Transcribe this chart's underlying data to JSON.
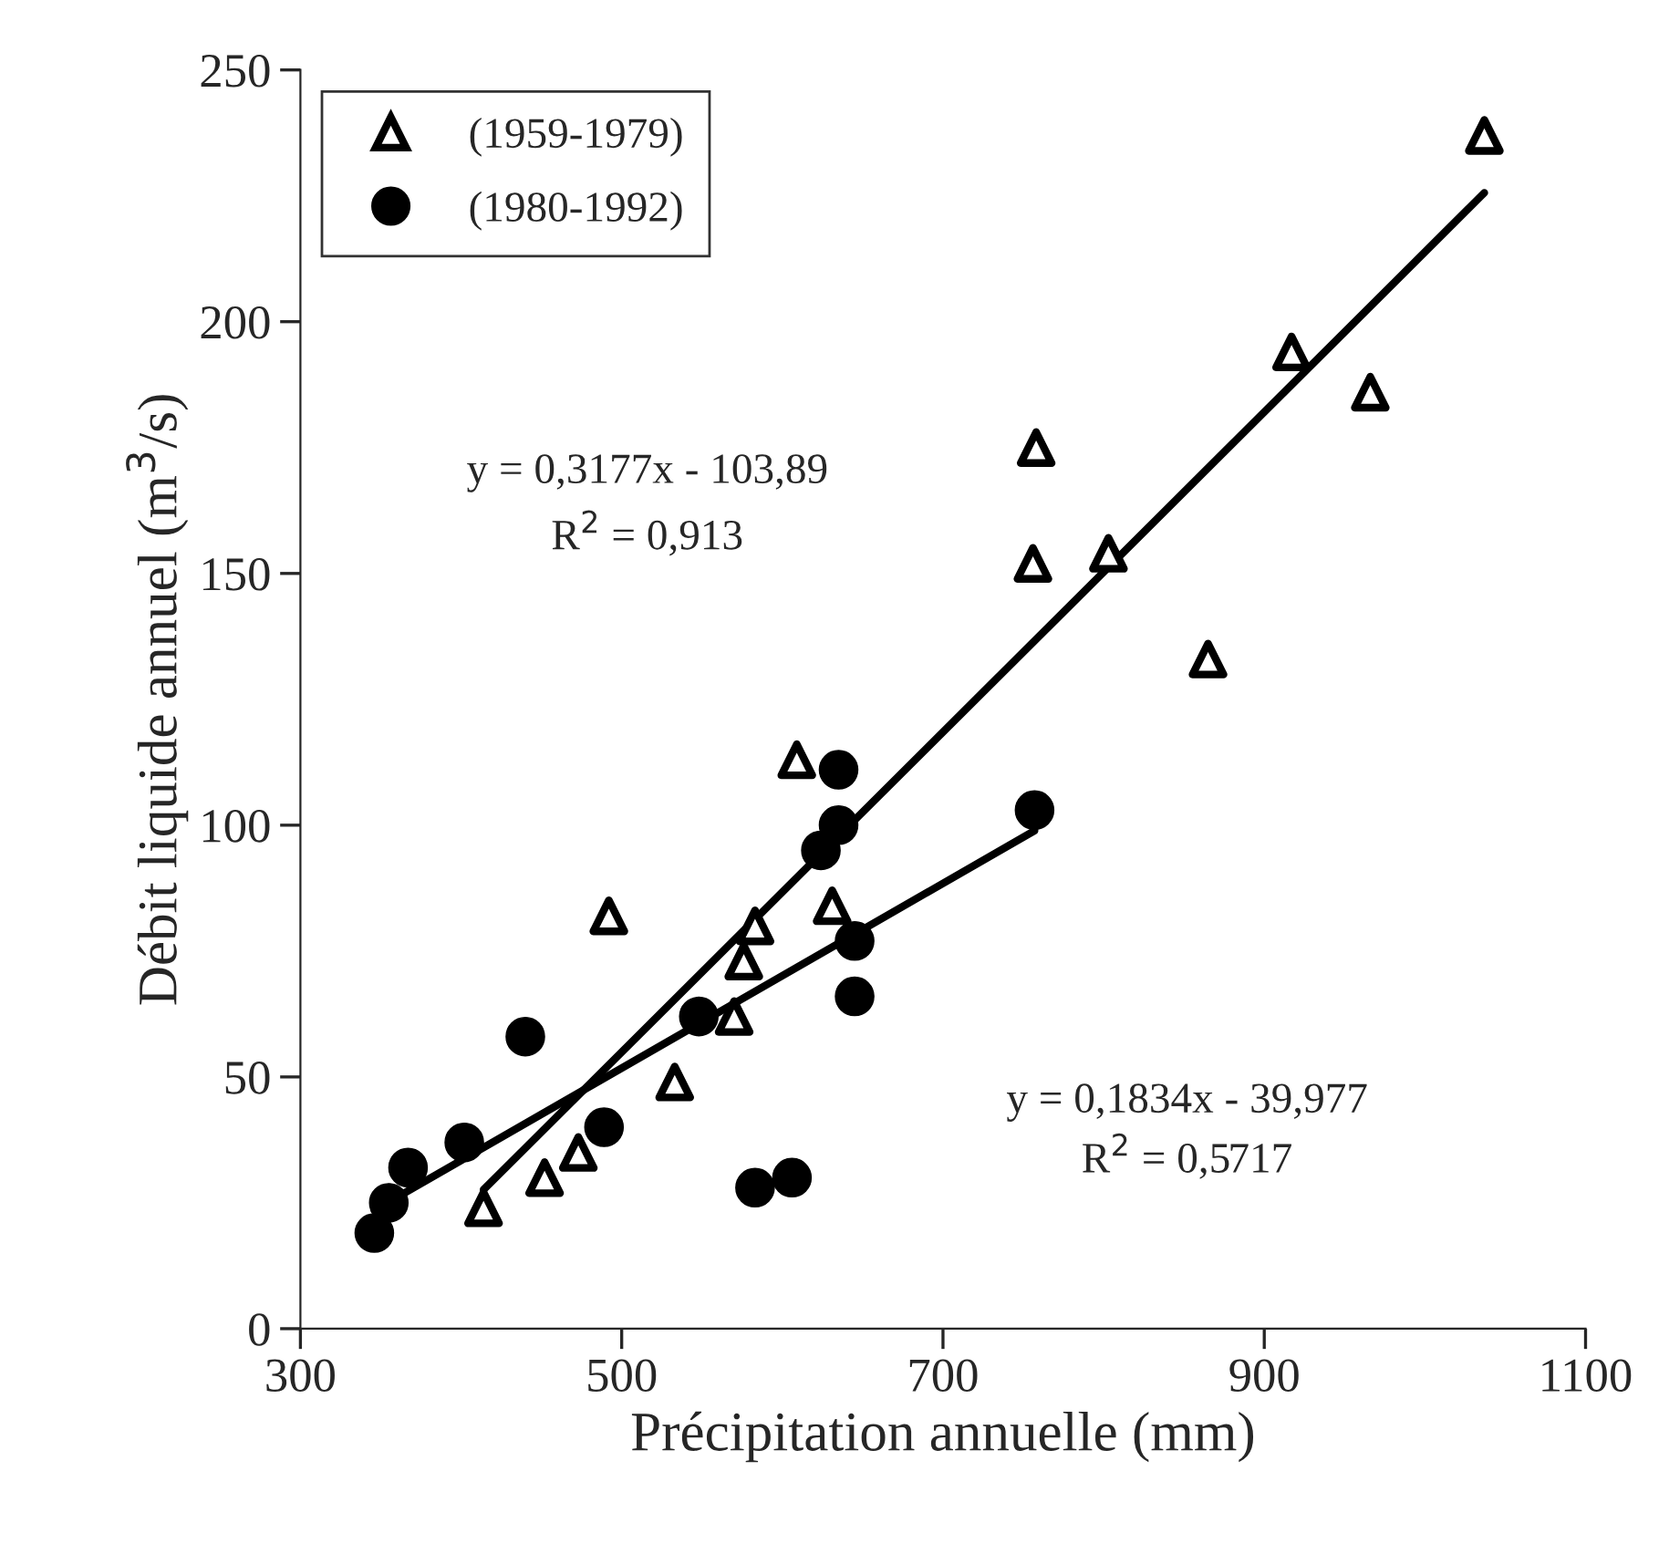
{
  "chart_data": {
    "type": "scatter",
    "xlabel": "Précipitation annuelle (mm)",
    "ylabel": "Débit liquide annuel (m$^{3}$/s)",
    "xlim": [
      300,
      1100
    ],
    "xticks": [
      300,
      500,
      700,
      900,
      1100
    ],
    "ylim": [
      0,
      250
    ],
    "yticks": [
      0,
      50,
      100,
      150,
      200,
      250
    ],
    "grid": false,
    "legend": "top left",
    "series": [
      {
        "name": "(1959-1979)",
        "marker": "triangle",
        "color": "#000000",
        "x": [
          414,
          452,
          473,
          533,
          570,
          576,
          583,
          492,
          631,
          609,
          756,
          758,
          803,
          865,
          917,
          966,
          1037
        ],
        "values": [
          24,
          30,
          35,
          49,
          62,
          73,
          80,
          82,
          84,
          113,
          152,
          175,
          154,
          133,
          194,
          186,
          237
        ]
      },
      {
        "name": "(1980-1992)",
        "marker": "circle",
        "color": "#000000",
        "x": [
          346,
          355,
          367,
          402,
          440,
          489,
          548,
          583,
          606,
          624,
          635,
          635,
          645,
          645,
          757
        ],
        "values": [
          19,
          25,
          32,
          37,
          58,
          40,
          62,
          28,
          30,
          95,
          100,
          111,
          77,
          66,
          103
        ]
      },
      {
        "type": "line",
        "color": "#000000",
        "x": [
          414,
          1037
        ],
        "values": [
          27.6,
          225.6
        ]
      },
      {
        "type": "line",
        "color": "#000000",
        "x": [
          346,
          757
        ],
        "values": [
          23.5,
          98.9
        ]
      }
    ],
    "annotations": [
      "y = 0,3177x - 103,89",
      "R$^{2}$ = 0,913",
      "y = 0,1834x - 39,977",
      "R$^{2}$ = 0,5717"
    ]
  }
}
